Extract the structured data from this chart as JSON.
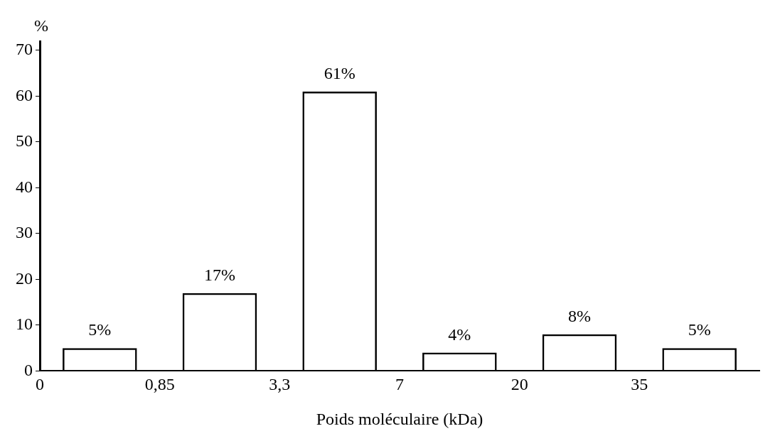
{
  "chart_data": {
    "type": "bar",
    "ylabel": "%",
    "xlabel": "Poids moléculaire (kDa)",
    "categories": [
      null,
      null,
      null,
      null,
      null,
      null
    ],
    "values": [
      5,
      17,
      61,
      4,
      8,
      5
    ],
    "value_labels": [
      "5%",
      "17%",
      "61%",
      "4%",
      "8%",
      "5%"
    ],
    "color": "#000000",
    "annotations": [
      "0",
      "0,85",
      "3,3",
      "7",
      "20",
      "35"
    ],
    "ylim": [
      0,
      72
    ],
    "yticks": [
      0,
      10,
      20,
      30,
      40,
      50,
      60,
      70
    ],
    "grid": false,
    "legend": false
  }
}
